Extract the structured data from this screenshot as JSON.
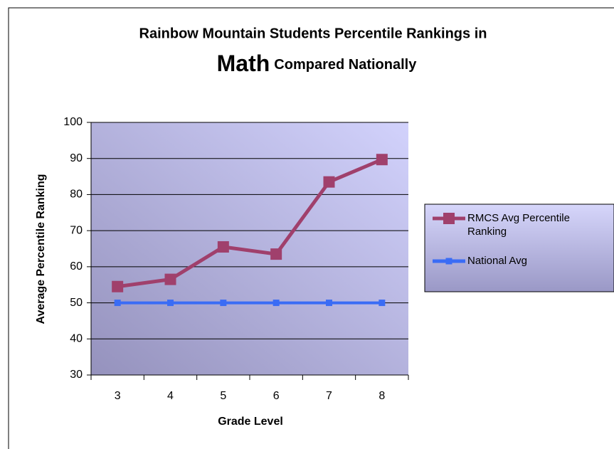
{
  "chart_data": {
    "type": "line",
    "title": [
      "Rainbow Mountain Students Percentile Rankings in",
      "Math",
      "Compared Nationally"
    ],
    "x_label": "Grade Level",
    "y_label": "Average Percentile Ranking",
    "categories": [
      "3",
      "4",
      "5",
      "6",
      "7",
      "8"
    ],
    "series": [
      {
        "name": "RMCS Avg Percentile Ranking",
        "color": "#a0406c",
        "values": [
          54.5,
          56.5,
          65.5,
          63.5,
          83.5,
          89.7
        ]
      },
      {
        "name": "National Avg",
        "color": "#3a6cf5",
        "values": [
          50,
          50,
          50,
          50,
          50,
          50
        ]
      }
    ],
    "ylim": [
      30,
      100
    ],
    "yticks": [
      30,
      40,
      50,
      60,
      70,
      80,
      90,
      100
    ],
    "grid": true,
    "legend": "right"
  }
}
